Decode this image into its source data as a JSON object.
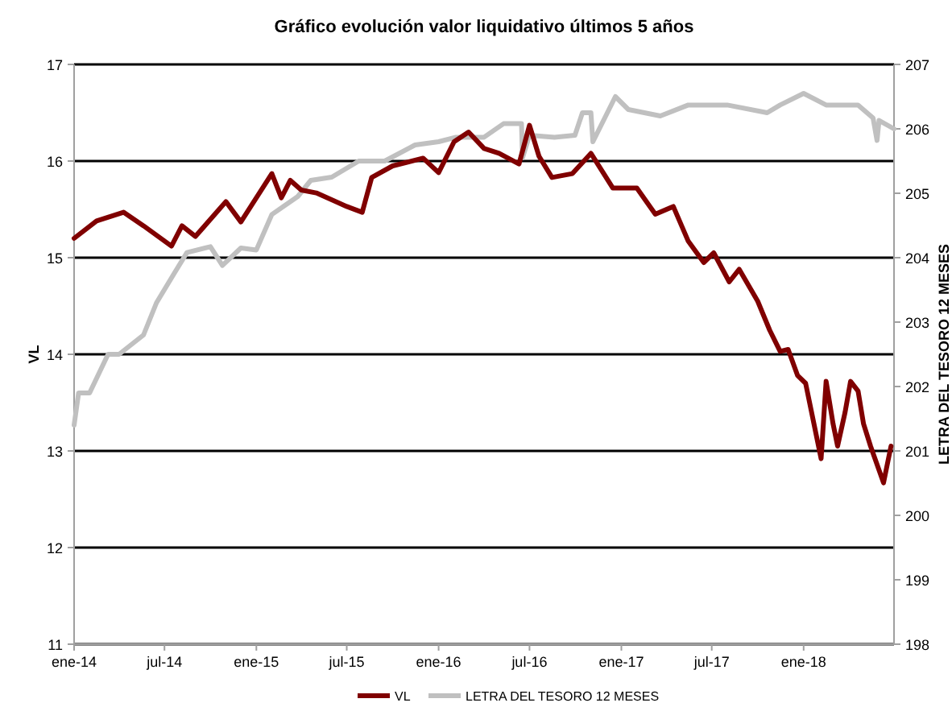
{
  "chart_data": {
    "type": "line",
    "title": "Gráfico evolución valor liquidativo últimos 5 años",
    "ylabel": "VL",
    "y2label": "LETRA DEL TESORO 12 MESES",
    "xlim": [
      "2014-01-01",
      "2018-07-01"
    ],
    "xticks": [
      {
        "value": "2014-01-01",
        "label": "ene-14"
      },
      {
        "value": "2014-07-01",
        "label": "jul-14"
      },
      {
        "value": "2015-01-01",
        "label": "ene-15"
      },
      {
        "value": "2015-07-01",
        "label": "jul-15"
      },
      {
        "value": "2016-01-01",
        "label": "ene-16"
      },
      {
        "value": "2016-07-01",
        "label": "jul-16"
      },
      {
        "value": "2017-01-01",
        "label": "ene-17"
      },
      {
        "value": "2017-07-01",
        "label": "jul-17"
      },
      {
        "value": "2018-01-01",
        "label": "ene-18"
      }
    ],
    "ylim": [
      11,
      17
    ],
    "yticks": [
      11,
      12,
      13,
      14,
      15,
      16,
      17
    ],
    "y2lim": [
      198,
      207
    ],
    "y2ticks": [
      198,
      199,
      200,
      201,
      202,
      203,
      204,
      205,
      206,
      207
    ],
    "grid": "y",
    "legend": "bottom",
    "line_style": "solid",
    "marker": "none",
    "series": [
      {
        "name": "VL",
        "color": "#800000",
        "x": [
          "2014-01-01",
          "2014-02-15",
          "2014-04-10",
          "2014-05-20",
          "2014-07-15",
          "2014-08-05",
          "2014-09-01",
          "2014-11-01",
          "2014-12-01",
          "2015-02-01",
          "2015-02-20",
          "2015-03-10",
          "2015-04-01",
          "2015-05-01",
          "2015-07-01",
          "2015-08-01",
          "2015-08-20",
          "2015-10-01",
          "2015-12-01",
          "2016-01-01",
          "2016-02-01",
          "2016-03-01",
          "2016-04-01",
          "2016-05-01",
          "2016-06-10",
          "2016-07-01",
          "2016-07-20",
          "2016-08-15",
          "2016-09-25",
          "2016-11-01",
          "2016-12-15",
          "2017-02-01",
          "2017-03-10",
          "2017-04-15",
          "2017-05-15",
          "2017-06-15",
          "2017-07-05",
          "2017-08-05",
          "2017-08-25",
          "2017-10-01",
          "2017-10-25",
          "2017-11-15",
          "2017-12-01",
          "2017-12-20",
          "2018-01-05",
          "2018-02-05",
          "2018-02-15",
          "2018-03-01",
          "2018-03-10",
          "2018-03-25",
          "2018-04-05",
          "2018-04-20",
          "2018-05-01",
          "2018-05-15",
          "2018-06-10",
          "2018-06-25"
        ],
        "values": [
          15.2,
          15.38,
          15.47,
          15.33,
          15.12,
          15.33,
          15.22,
          15.58,
          15.37,
          15.87,
          15.62,
          15.8,
          15.7,
          15.67,
          15.53,
          15.47,
          15.83,
          15.95,
          16.03,
          15.88,
          16.2,
          16.3,
          16.13,
          16.08,
          15.97,
          16.37,
          16.05,
          15.83,
          15.87,
          16.08,
          15.72,
          15.72,
          15.45,
          15.53,
          15.17,
          14.95,
          15.05,
          14.75,
          14.88,
          14.55,
          14.25,
          14.03,
          14.05,
          13.78,
          13.7,
          12.92,
          13.72,
          13.28,
          13.05,
          13.4,
          13.72,
          13.62,
          13.28,
          13.05,
          12.67,
          13.05
        ]
      },
      {
        "name": "LETRA DEL TESORO 12 MESES",
        "color": "#c0c0c0",
        "axis": "y2",
        "x": [
          "2014-01-01",
          "2014-01-10",
          "2014-02-01",
          "2014-03-10",
          "2014-04-01",
          "2014-05-20",
          "2014-06-15",
          "2014-07-20",
          "2014-08-15",
          "2014-10-01",
          "2014-10-25",
          "2014-12-01",
          "2015-01-01",
          "2015-02-01",
          "2015-03-25",
          "2015-04-20",
          "2015-06-01",
          "2015-07-25",
          "2015-09-15",
          "2015-11-15",
          "2016-01-01",
          "2016-02-05",
          "2016-04-01",
          "2016-05-10",
          "2016-06-15",
          "2016-06-17",
          "2016-07-01",
          "2016-08-20",
          "2016-09-30",
          "2016-10-15",
          "2016-11-01",
          "2016-11-05",
          "2016-12-20",
          "2017-01-15",
          "2017-03-20",
          "2017-05-15",
          "2017-08-01",
          "2017-10-20",
          "2017-11-15",
          "2018-01-01",
          "2018-02-15",
          "2018-04-20",
          "2018-05-20",
          "2018-05-28",
          "2018-06-01",
          "2018-07-01"
        ],
        "values": [
          201.4,
          201.9,
          201.9,
          202.5,
          202.5,
          202.8,
          203.3,
          203.75,
          204.08,
          204.17,
          203.88,
          204.15,
          204.12,
          204.67,
          204.95,
          205.2,
          205.25,
          205.5,
          205.5,
          205.75,
          205.8,
          205.87,
          205.87,
          206.08,
          206.08,
          205.55,
          205.9,
          205.87,
          205.9,
          206.25,
          206.25,
          205.8,
          206.5,
          206.3,
          206.2,
          206.37,
          206.37,
          206.25,
          206.37,
          206.55,
          206.37,
          206.37,
          206.17,
          205.82,
          206.13,
          206.0
        ]
      }
    ]
  }
}
